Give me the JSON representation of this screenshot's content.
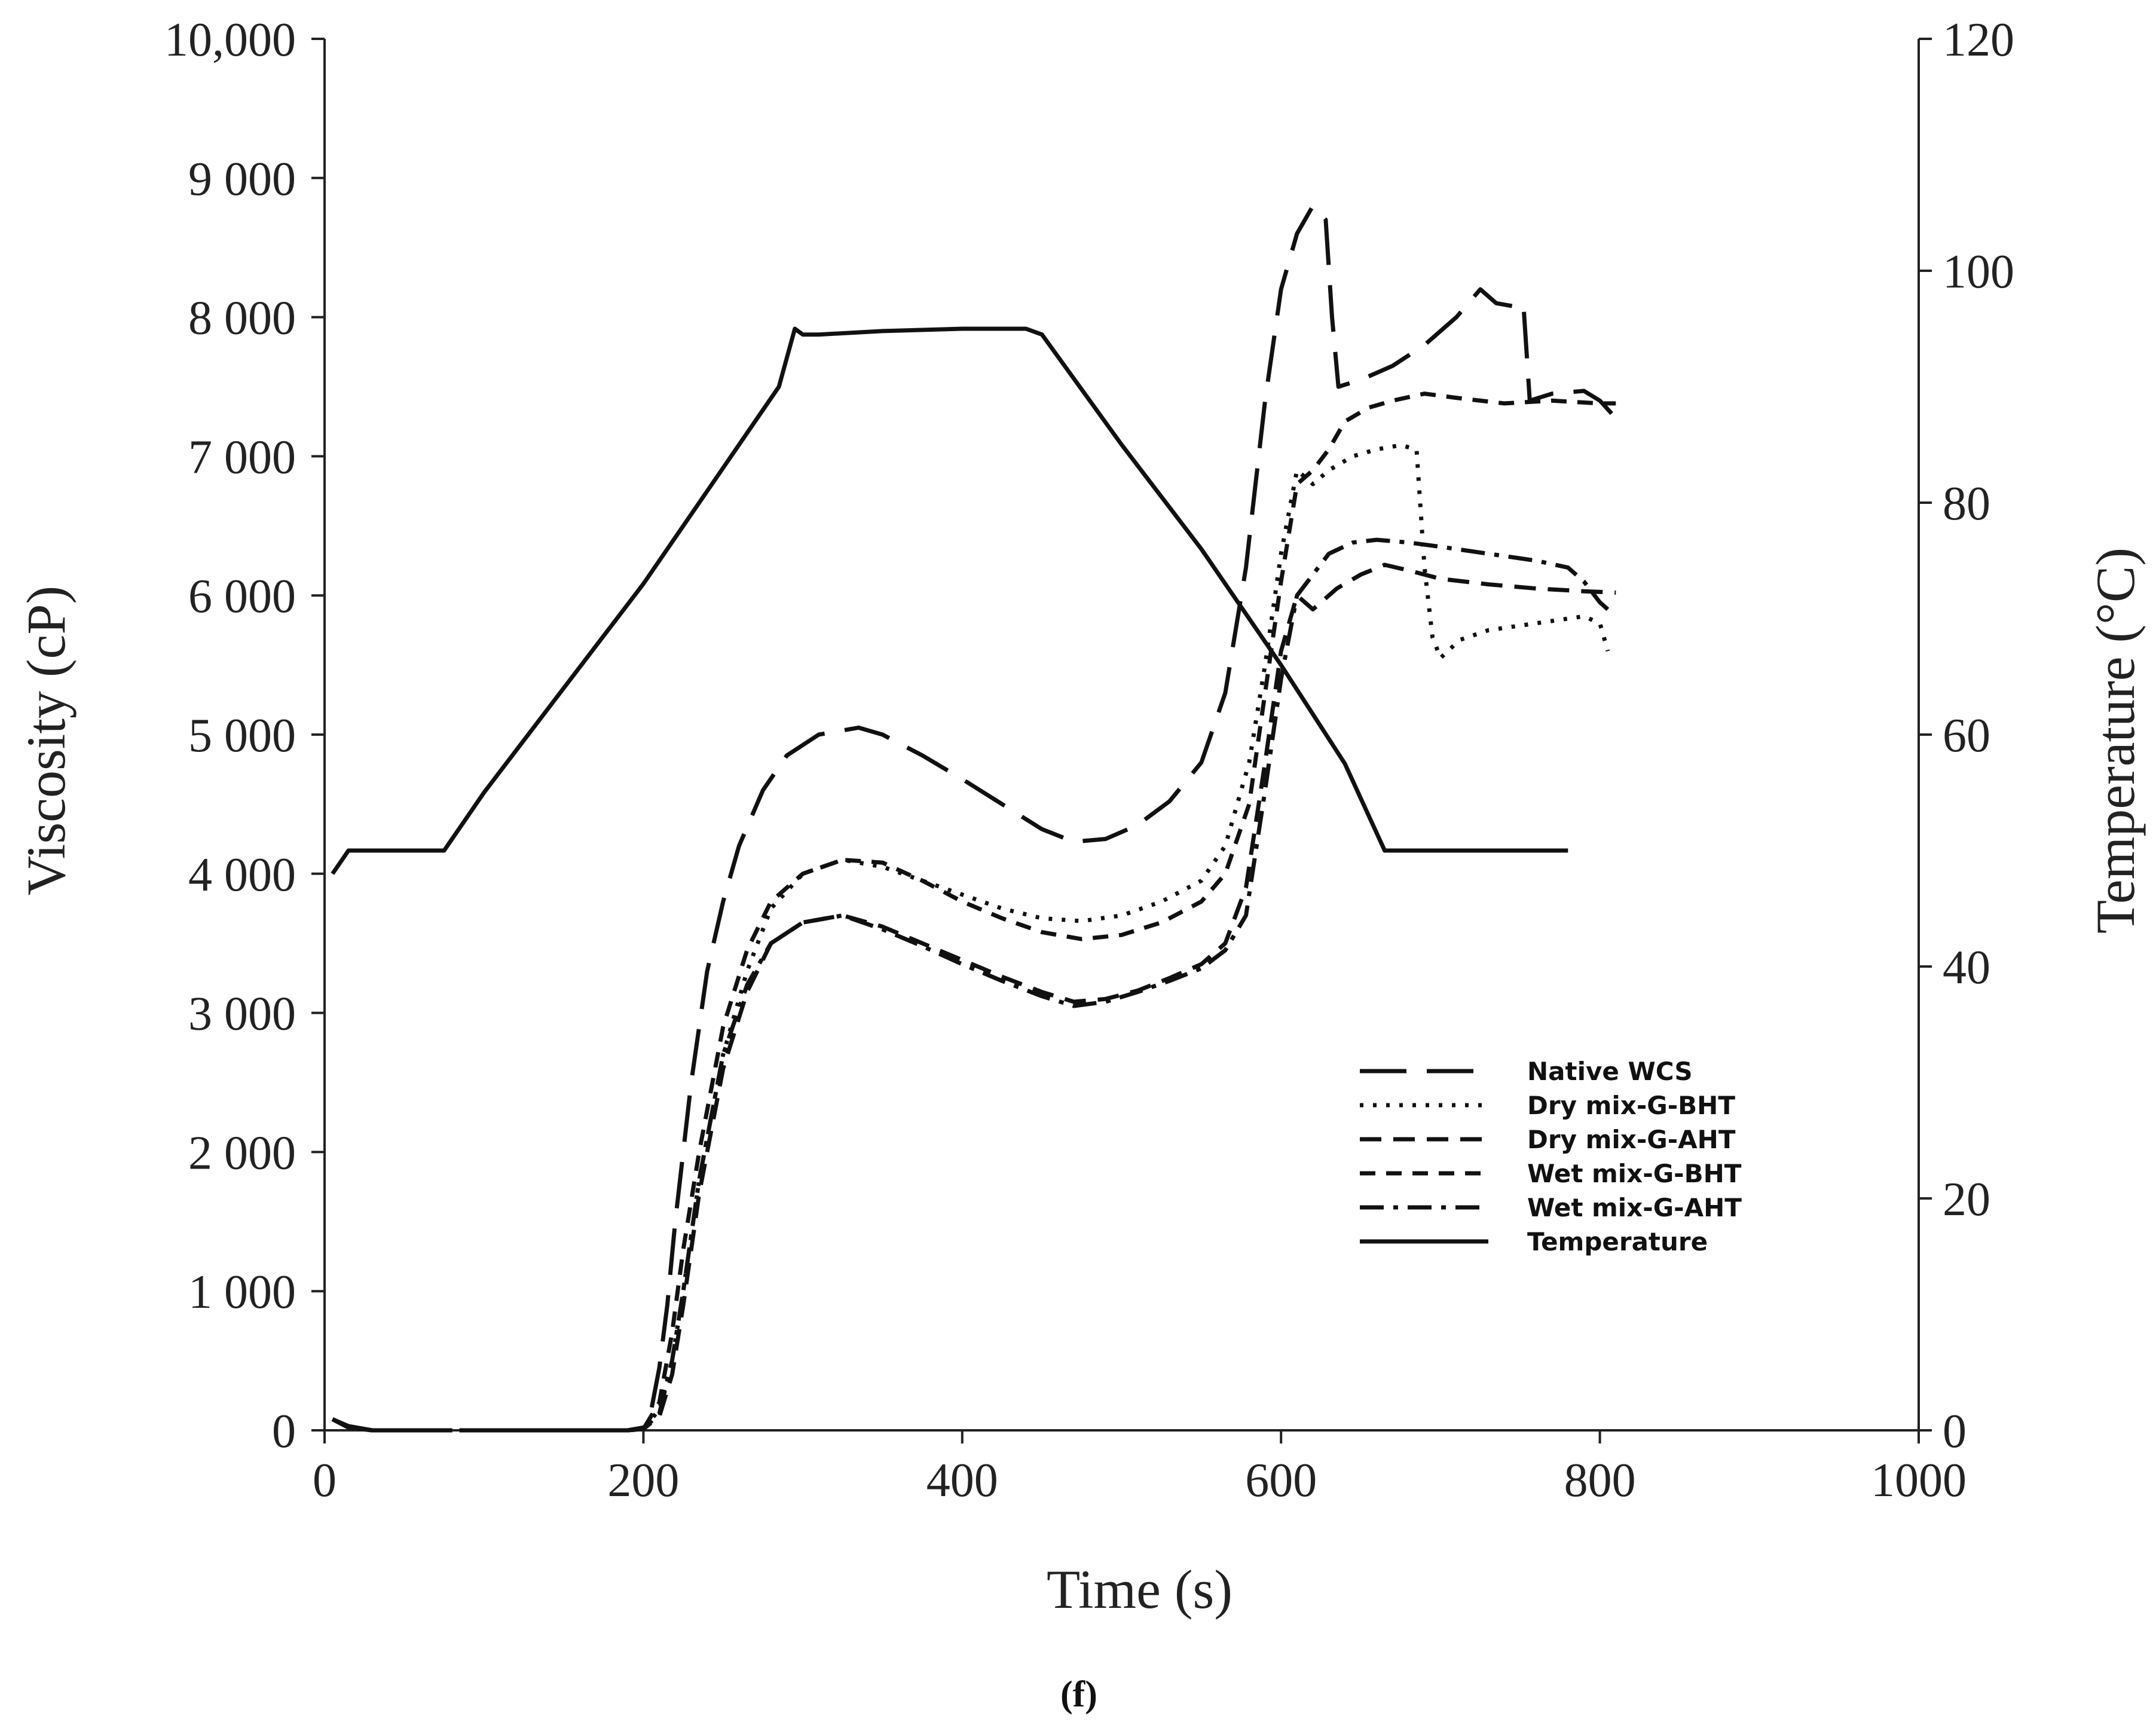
{
  "chart_data": {
    "type": "line",
    "caption": "(f)",
    "xlabel": "Time (s)",
    "ylabel_left": "Viscosity (cP)",
    "ylabel_right": "Temperature (°C)",
    "xlim": [
      0,
      1000
    ],
    "ylim_left": [
      0,
      10000
    ],
    "ylim_right": [
      0,
      120
    ],
    "x_ticks": [
      {
        "value": 0,
        "label": "0"
      },
      {
        "value": 200,
        "label": "200"
      },
      {
        "value": 400,
        "label": "400"
      },
      {
        "value": 600,
        "label": "600"
      },
      {
        "value": 800,
        "label": "800"
      },
      {
        "value": 1000,
        "label": "1000"
      }
    ],
    "y_left_ticks": [
      {
        "value": 0,
        "label": "0"
      },
      {
        "value": 1000,
        "label": "1 000"
      },
      {
        "value": 2000,
        "label": "2 000"
      },
      {
        "value": 3000,
        "label": "3 000"
      },
      {
        "value": 4000,
        "label": "4 000"
      },
      {
        "value": 5000,
        "label": "5 000"
      },
      {
        "value": 6000,
        "label": "6 000"
      },
      {
        "value": 7000,
        "label": "7 000"
      },
      {
        "value": 8000,
        "label": "8 000"
      },
      {
        "value": 9000,
        "label": "9 000"
      },
      {
        "value": 10000,
        "label": "10,000"
      }
    ],
    "y_right_ticks": [
      {
        "value": 0,
        "label": "0"
      },
      {
        "value": 20,
        "label": "20"
      },
      {
        "value": 40,
        "label": "40"
      },
      {
        "value": 60,
        "label": "60"
      },
      {
        "value": 80,
        "label": "80"
      },
      {
        "value": 100,
        "label": "100"
      },
      {
        "value": 120,
        "label": "120"
      }
    ],
    "legend_position": "lower-right",
    "series": [
      {
        "name": "Native WCS",
        "axis": "left",
        "dash": "long-dash",
        "points": [
          [
            5,
            80
          ],
          [
            15,
            30
          ],
          [
            30,
            0
          ],
          [
            100,
            0
          ],
          [
            150,
            0
          ],
          [
            190,
            0
          ],
          [
            200,
            20
          ],
          [
            205,
            150
          ],
          [
            210,
            450
          ],
          [
            215,
            900
          ],
          [
            220,
            1500
          ],
          [
            230,
            2500
          ],
          [
            240,
            3300
          ],
          [
            250,
            3800
          ],
          [
            260,
            4200
          ],
          [
            275,
            4600
          ],
          [
            290,
            4850
          ],
          [
            310,
            5000
          ],
          [
            335,
            5050
          ],
          [
            350,
            5000
          ],
          [
            375,
            4850
          ],
          [
            400,
            4680
          ],
          [
            425,
            4500
          ],
          [
            450,
            4320
          ],
          [
            470,
            4230
          ],
          [
            490,
            4250
          ],
          [
            510,
            4350
          ],
          [
            530,
            4520
          ],
          [
            550,
            4800
          ],
          [
            565,
            5300
          ],
          [
            578,
            6200
          ],
          [
            590,
            7400
          ],
          [
            600,
            8200
          ],
          [
            610,
            8600
          ],
          [
            620,
            8800
          ],
          [
            628,
            8700
          ],
          [
            632,
            8000
          ],
          [
            636,
            7500
          ],
          [
            650,
            7550
          ],
          [
            670,
            7650
          ],
          [
            690,
            7800
          ],
          [
            710,
            8000
          ],
          [
            725,
            8200
          ],
          [
            735,
            8100
          ],
          [
            745,
            8080
          ],
          [
            752,
            8100
          ],
          [
            756,
            7400
          ],
          [
            770,
            7450
          ],
          [
            790,
            7470
          ],
          [
            800,
            7400
          ],
          [
            808,
            7300
          ],
          [
            810,
            7200
          ]
        ]
      },
      {
        "name": "Dry mix-G-BHT",
        "axis": "left",
        "dash": "dotted",
        "points": [
          [
            5,
            80
          ],
          [
            15,
            20
          ],
          [
            30,
            0
          ],
          [
            190,
            0
          ],
          [
            200,
            10
          ],
          [
            210,
            150
          ],
          [
            218,
            500
          ],
          [
            225,
            1000
          ],
          [
            235,
            1800
          ],
          [
            250,
            2700
          ],
          [
            265,
            3300
          ],
          [
            280,
            3750
          ],
          [
            300,
            4000
          ],
          [
            325,
            4100
          ],
          [
            350,
            4050
          ],
          [
            375,
            3950
          ],
          [
            400,
            3850
          ],
          [
            425,
            3750
          ],
          [
            450,
            3680
          ],
          [
            475,
            3660
          ],
          [
            500,
            3700
          ],
          [
            525,
            3800
          ],
          [
            550,
            3950
          ],
          [
            565,
            4200
          ],
          [
            580,
            4800
          ],
          [
            590,
            5500
          ],
          [
            600,
            6300
          ],
          [
            610,
            6900
          ],
          [
            620,
            6800
          ],
          [
            630,
            6900
          ],
          [
            645,
            7000
          ],
          [
            660,
            7050
          ],
          [
            675,
            7080
          ],
          [
            685,
            7050
          ],
          [
            690,
            6200
          ],
          [
            695,
            5700
          ],
          [
            700,
            5550
          ],
          [
            712,
            5680
          ],
          [
            730,
            5750
          ],
          [
            760,
            5800
          ],
          [
            790,
            5850
          ],
          [
            800,
            5800
          ],
          [
            805,
            5600
          ]
        ]
      },
      {
        "name": "Dry mix-G-AHT",
        "axis": "left",
        "dash": "medium-dash",
        "points": [
          [
            5,
            80
          ],
          [
            15,
            20
          ],
          [
            30,
            0
          ],
          [
            190,
            0
          ],
          [
            200,
            10
          ],
          [
            210,
            100
          ],
          [
            218,
            400
          ],
          [
            225,
            900
          ],
          [
            235,
            1700
          ],
          [
            250,
            2600
          ],
          [
            265,
            3150
          ],
          [
            280,
            3500
          ],
          [
            300,
            3650
          ],
          [
            325,
            3700
          ],
          [
            350,
            3620
          ],
          [
            375,
            3500
          ],
          [
            400,
            3380
          ],
          [
            425,
            3260
          ],
          [
            450,
            3150
          ],
          [
            470,
            3080
          ],
          [
            490,
            3100
          ],
          [
            510,
            3160
          ],
          [
            530,
            3250
          ],
          [
            550,
            3350
          ],
          [
            565,
            3500
          ],
          [
            578,
            3900
          ],
          [
            590,
            4800
          ],
          [
            600,
            5600
          ],
          [
            610,
            6000
          ],
          [
            620,
            5900
          ],
          [
            635,
            6050
          ],
          [
            650,
            6150
          ],
          [
            665,
            6220
          ],
          [
            680,
            6180
          ],
          [
            700,
            6120
          ],
          [
            730,
            6080
          ],
          [
            760,
            6050
          ],
          [
            790,
            6030
          ],
          [
            810,
            6020
          ]
        ]
      },
      {
        "name": "Wet mix-G-BHT",
        "axis": "left",
        "dash": "short-dash",
        "points": [
          [
            5,
            80
          ],
          [
            15,
            20
          ],
          [
            30,
            0
          ],
          [
            190,
            0
          ],
          [
            200,
            10
          ],
          [
            210,
            200
          ],
          [
            218,
            700
          ],
          [
            225,
            1300
          ],
          [
            235,
            2000
          ],
          [
            250,
            2900
          ],
          [
            265,
            3450
          ],
          [
            280,
            3800
          ],
          [
            300,
            4000
          ],
          [
            325,
            4100
          ],
          [
            350,
            4080
          ],
          [
            375,
            3950
          ],
          [
            400,
            3800
          ],
          [
            425,
            3680
          ],
          [
            450,
            3580
          ],
          [
            475,
            3530
          ],
          [
            500,
            3560
          ],
          [
            525,
            3650
          ],
          [
            550,
            3800
          ],
          [
            565,
            4000
          ],
          [
            580,
            4500
          ],
          [
            590,
            5300
          ],
          [
            600,
            6100
          ],
          [
            610,
            6800
          ],
          [
            620,
            6900
          ],
          [
            630,
            7050
          ],
          [
            640,
            7250
          ],
          [
            655,
            7350
          ],
          [
            670,
            7400
          ],
          [
            690,
            7450
          ],
          [
            710,
            7420
          ],
          [
            740,
            7380
          ],
          [
            770,
            7400
          ],
          [
            800,
            7380
          ],
          [
            810,
            7380
          ]
        ]
      },
      {
        "name": "Wet mix-G-AHT",
        "axis": "left",
        "dash": "dash-dot",
        "points": [
          [
            5,
            80
          ],
          [
            15,
            20
          ],
          [
            30,
            0
          ],
          [
            190,
            0
          ],
          [
            200,
            10
          ],
          [
            210,
            120
          ],
          [
            218,
            500
          ],
          [
            225,
            1000
          ],
          [
            235,
            1800
          ],
          [
            250,
            2700
          ],
          [
            265,
            3200
          ],
          [
            280,
            3500
          ],
          [
            300,
            3650
          ],
          [
            325,
            3700
          ],
          [
            350,
            3600
          ],
          [
            375,
            3480
          ],
          [
            400,
            3350
          ],
          [
            425,
            3230
          ],
          [
            450,
            3120
          ],
          [
            470,
            3050
          ],
          [
            490,
            3080
          ],
          [
            510,
            3150
          ],
          [
            530,
            3230
          ],
          [
            550,
            3320
          ],
          [
            565,
            3450
          ],
          [
            578,
            3700
          ],
          [
            590,
            4600
          ],
          [
            600,
            5400
          ],
          [
            610,
            6000
          ],
          [
            620,
            6150
          ],
          [
            630,
            6300
          ],
          [
            645,
            6380
          ],
          [
            660,
            6400
          ],
          [
            680,
            6380
          ],
          [
            700,
            6350
          ],
          [
            730,
            6300
          ],
          [
            760,
            6250
          ],
          [
            780,
            6200
          ],
          [
            790,
            6100
          ],
          [
            800,
            5950
          ],
          [
            805,
            5900
          ]
        ]
      },
      {
        "name": "Temperature",
        "axis": "right",
        "dash": "solid",
        "points": [
          [
            5,
            48
          ],
          [
            15,
            50
          ],
          [
            40,
            50
          ],
          [
            60,
            50
          ],
          [
            75,
            50
          ],
          [
            100,
            55
          ],
          [
            150,
            64
          ],
          [
            200,
            73
          ],
          [
            250,
            83
          ],
          [
            285,
            90
          ],
          [
            295,
            95
          ],
          [
            300,
            94.5
          ],
          [
            310,
            94.5
          ],
          [
            350,
            94.8
          ],
          [
            400,
            95
          ],
          [
            440,
            95
          ],
          [
            450,
            94.5
          ],
          [
            500,
            85
          ],
          [
            550,
            76
          ],
          [
            600,
            66
          ],
          [
            640,
            57.5
          ],
          [
            665,
            50
          ],
          [
            700,
            50
          ],
          [
            780,
            50
          ]
        ]
      }
    ]
  }
}
